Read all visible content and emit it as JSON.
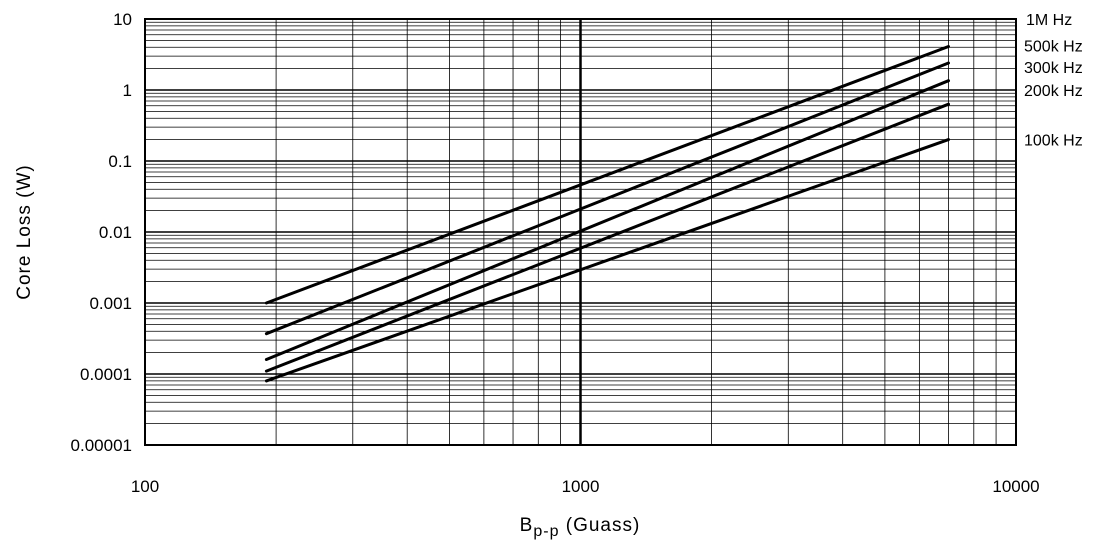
{
  "chart_data": {
    "type": "line",
    "title": "",
    "xlabel": "B",
    "xlabel_sub": "p-p",
    "xlabel_unit": "(Guass)",
    "ylabel": "Core Loss (W)",
    "xscale": "log",
    "yscale": "log",
    "xlim": [
      100,
      10000
    ],
    "ylim": [
      1e-05,
      10
    ],
    "xticks": [
      "100",
      "1000",
      "10000"
    ],
    "yticks": [
      "0.00001",
      "0.0001",
      "0.001",
      "0.01",
      "0.1",
      "1",
      "10"
    ],
    "grid": true,
    "series_label_position": "right",
    "series": [
      {
        "name": "1M Hz",
        "x": [
          190,
          7000
        ],
        "y": [
          0.001,
          4.1
        ]
      },
      {
        "name": "500k Hz",
        "x": [
          190,
          7000
        ],
        "y": [
          0.00037,
          2.4
        ]
      },
      {
        "name": "300k Hz",
        "x": [
          190,
          7000
        ],
        "y": [
          0.00016,
          1.35
        ]
      },
      {
        "name": "200k Hz",
        "x": [
          190,
          7000
        ],
        "y": [
          0.00011,
          0.63
        ]
      },
      {
        "name": "100k Hz",
        "x": [
          190,
          7000
        ],
        "y": [
          8e-05,
          0.2
        ]
      }
    ],
    "label_levels": [
      10,
      4.2,
      2.1,
      1.0,
      0.2
    ]
  }
}
